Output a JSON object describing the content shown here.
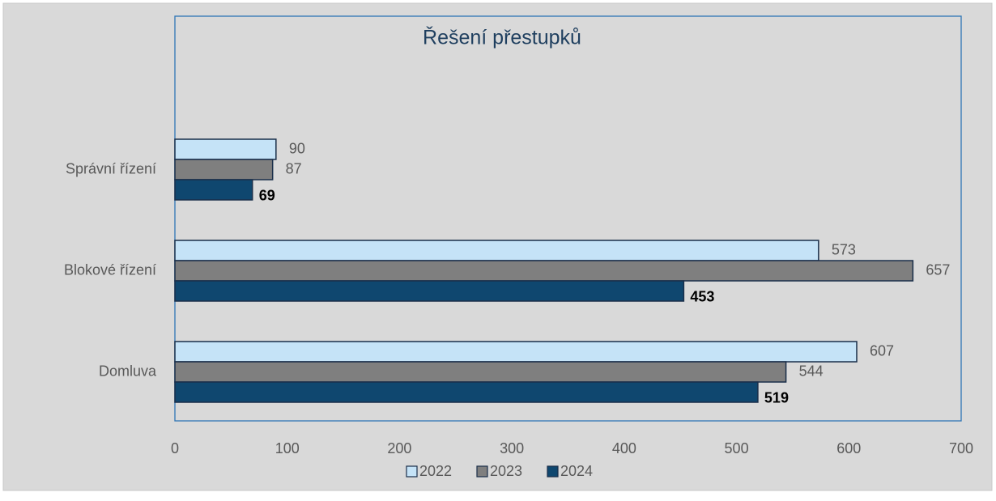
{
  "chart_data": {
    "type": "barh",
    "title": "Řešení přestupků",
    "categories": [
      "Správní řízení",
      "Blokové řízení",
      "Domluva"
    ],
    "series": [
      {
        "name": "2022",
        "color": "#c5e3f7",
        "values": [
          90,
          573,
          607
        ]
      },
      {
        "name": "2023",
        "color": "#7f7f7f",
        "values": [
          87,
          657,
          544
        ]
      },
      {
        "name": "2024",
        "color": "#0f476f",
        "values": [
          69,
          453,
          519
        ]
      }
    ],
    "xlim": [
      0,
      700
    ],
    "xticks": [
      0,
      100,
      200,
      300,
      400,
      500,
      600,
      700
    ],
    "legend": "bottom"
  }
}
